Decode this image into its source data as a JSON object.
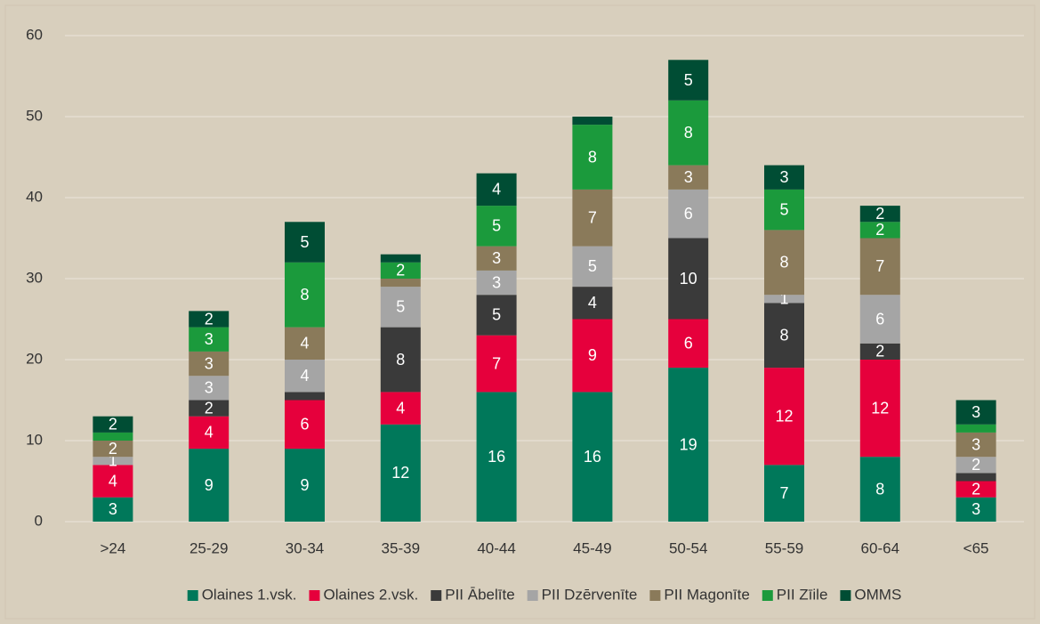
{
  "chart_data": {
    "type": "stacked_bar",
    "categories": [
      ">24",
      "25-29",
      "30-34",
      "35-39",
      "40-44",
      "45-49",
      "50-54",
      "55-59",
      "60-64",
      "<65"
    ],
    "series": [
      {
        "name": "Olaines 1.vsk.",
        "color": "#00785a",
        "values": [
          3,
          9,
          9,
          12,
          16,
          16,
          19,
          7,
          8,
          3
        ],
        "value_labels": [
          "3",
          "9",
          "9",
          "12",
          "16",
          "16",
          "19",
          "7",
          "8",
          "3"
        ]
      },
      {
        "name": "Olaines 2.vsk.",
        "color": "#e6003c",
        "values": [
          4,
          4,
          6,
          4,
          7,
          9,
          6,
          12,
          12,
          2
        ],
        "value_labels": [
          "4",
          "4",
          "6",
          "4",
          "7",
          "9",
          "6",
          "12",
          "12",
          "2"
        ]
      },
      {
        "name": "PII Ābelīte",
        "color": "#3a3a3a",
        "values": [
          0,
          2,
          1,
          8,
          5,
          4,
          10,
          8,
          2,
          1
        ],
        "value_labels": [
          null,
          "2",
          null,
          "8",
          "5",
          "4",
          "10",
          "8",
          "2",
          null
        ]
      },
      {
        "name": "PII Dzērvenīte",
        "color": "#a5a5a5",
        "values": [
          1,
          3,
          4,
          5,
          3,
          5,
          6,
          1,
          6,
          2
        ],
        "value_labels": [
          "1",
          "3",
          "4",
          "5",
          "3",
          "5",
          "6",
          "1",
          "6",
          "2"
        ]
      },
      {
        "name": "PII Magonīte",
        "color": "#8a7a5a",
        "values": [
          2,
          3,
          4,
          1,
          3,
          7,
          3,
          8,
          7,
          3
        ],
        "value_labels": [
          "2",
          "3",
          "4",
          null,
          "3",
          "7",
          "3",
          "8",
          "7",
          "3"
        ]
      },
      {
        "name": "PII Zīile",
        "color": "#1b9a3c",
        "values": [
          1,
          3,
          8,
          2,
          5,
          8,
          8,
          5,
          2,
          1
        ],
        "value_labels": [
          null,
          "3",
          "8",
          "2",
          "5",
          "8",
          "8",
          "5",
          "2",
          null
        ]
      },
      {
        "name": "OMMS",
        "color": "#004d34",
        "values": [
          2,
          2,
          5,
          1,
          4,
          1,
          5,
          3,
          2,
          3
        ],
        "value_labels": [
          "2",
          "2",
          "5",
          null,
          "4",
          null,
          "5",
          "3",
          "2",
          "3"
        ]
      }
    ],
    "ylim": [
      0,
      60
    ],
    "yticks": [
      0,
      10,
      20,
      30,
      40,
      50,
      60
    ],
    "grid": true,
    "legend": "bottom"
  }
}
